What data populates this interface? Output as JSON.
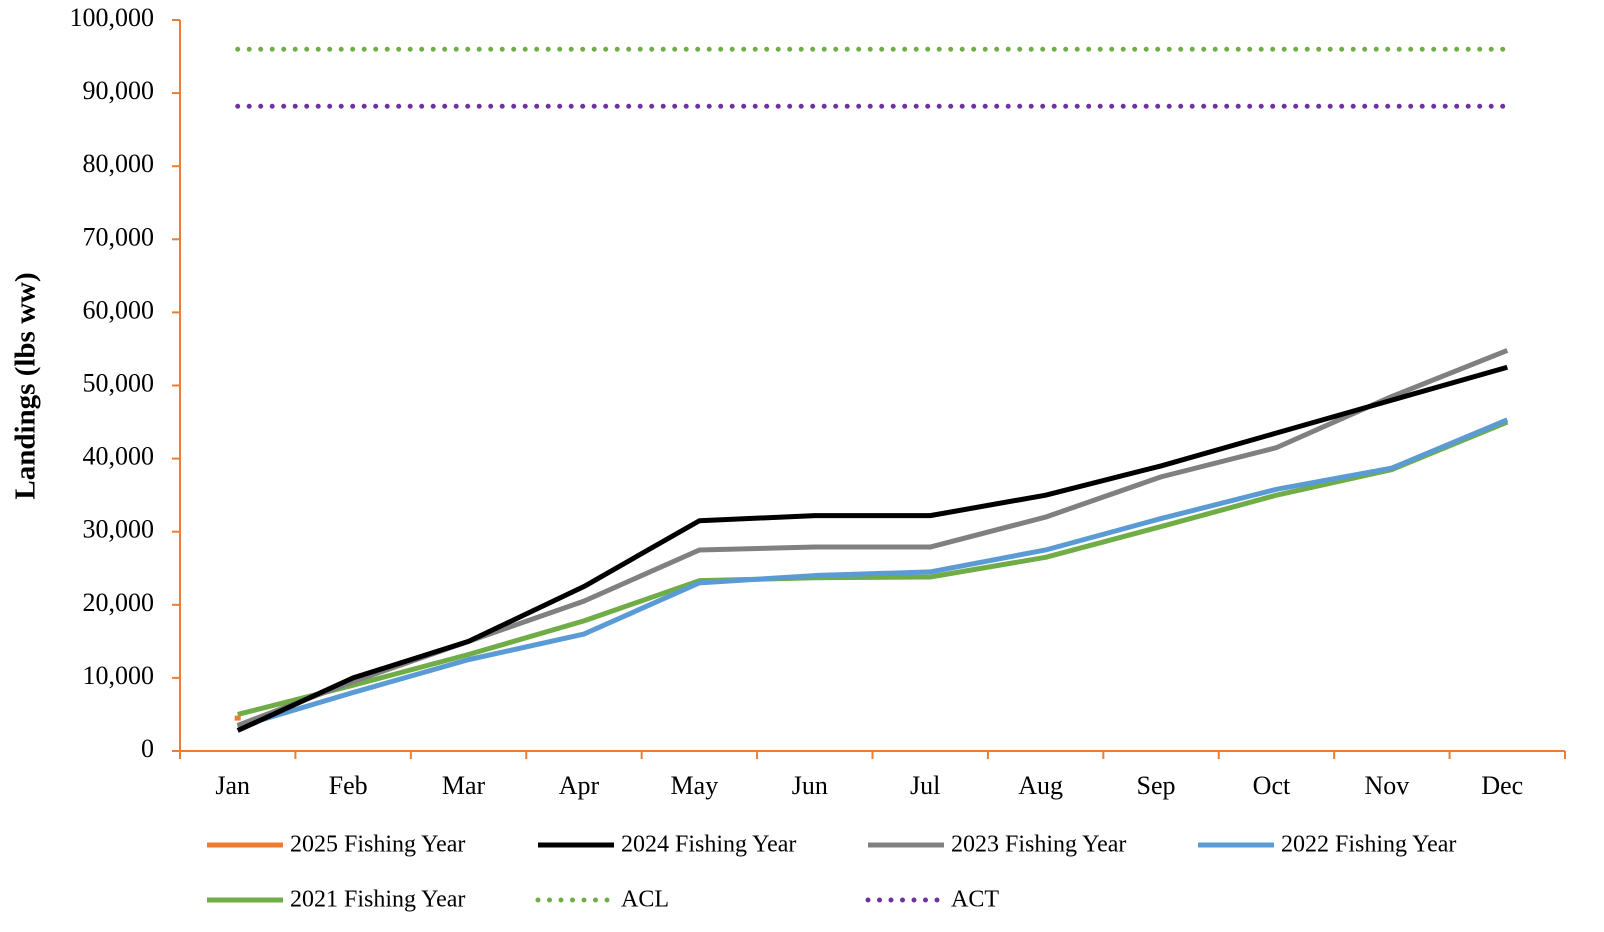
{
  "chart_data": {
    "type": "line",
    "y_label": "Landings (lbs ww)",
    "categories": [
      "Jan",
      "Feb",
      "Mar",
      "Apr",
      "May",
      "Jun",
      "Jul",
      "Aug",
      "Sep",
      "Oct",
      "Nov",
      "Dec"
    ],
    "ylim": [
      0,
      100000
    ],
    "yticks": [
      0,
      {
        "value": 10000,
        "label": "10,000"
      },
      {
        "value": 20000,
        "label": "20,000"
      },
      {
        "value": 30000,
        "label": "30,000"
      },
      {
        "value": 40000,
        "label": "40,000"
      },
      {
        "value": 50000,
        "label": "50,000"
      },
      {
        "value": 60000,
        "label": "60,000"
      },
      {
        "value": 70000,
        "label": "70,000"
      },
      {
        "value": 80000,
        "label": "80,000"
      },
      {
        "value": 90000,
        "label": "90,000"
      },
      {
        "value": 100000,
        "label": "100,000"
      }
    ],
    "axis_color": "#ed7d31",
    "series": [
      {
        "name": "2025 Fishing Year",
        "color": "#ed7d31",
        "style": "solid",
        "values": [
          4500,
          null,
          null,
          null,
          null,
          null,
          null,
          null,
          null,
          null,
          null,
          null
        ]
      },
      {
        "name": "2024 Fishing Year",
        "color": "#000000",
        "style": "solid",
        "values": [
          2800,
          10000,
          15000,
          22500,
          31500,
          32200,
          32200,
          35000,
          39000,
          43500,
          48000,
          52500
        ]
      },
      {
        "name": "2023 Fishing Year",
        "color": "#808080",
        "style": "solid",
        "values": [
          3500,
          9500,
          15000,
          20500,
          27500,
          27900,
          27900,
          32000,
          37500,
          41500,
          48500,
          54800
        ]
      },
      {
        "name": "2022 Fishing Year",
        "color": "#5b9bd5",
        "style": "solid",
        "values": [
          3300,
          8000,
          12500,
          16000,
          23000,
          24000,
          24500,
          27500,
          31800,
          35800,
          38700,
          45300
        ]
      },
      {
        "name": "2021 Fishing Year",
        "color": "#70ad47",
        "style": "solid",
        "values": [
          5000,
          9000,
          13200,
          17800,
          23300,
          23700,
          23800,
          26500,
          30700,
          35000,
          38500,
          45000
        ]
      },
      {
        "name": "ACL",
        "color": "#70ad47",
        "style": "dotted",
        "values": [
          96000,
          96000,
          96000,
          96000,
          96000,
          96000,
          96000,
          96000,
          96000,
          96000,
          96000,
          96000
        ]
      },
      {
        "name": "ACT",
        "color": "#7030a0",
        "style": "dotted",
        "values": [
          88200,
          88200,
          88200,
          88200,
          88200,
          88200,
          88200,
          88200,
          88200,
          88200,
          88200,
          88200
        ]
      }
    ]
  }
}
